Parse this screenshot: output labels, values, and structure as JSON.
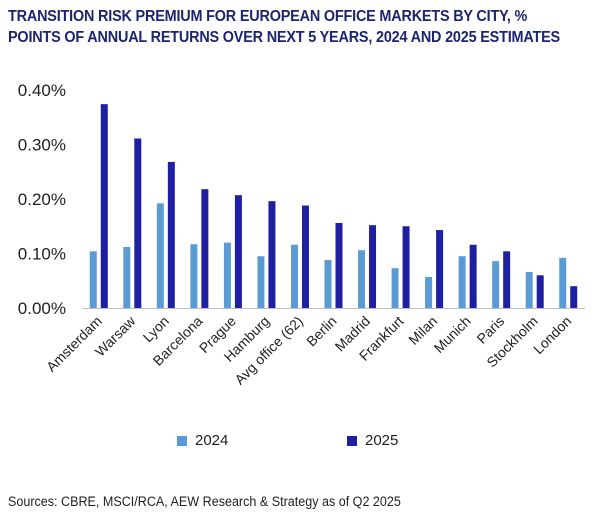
{
  "title": "TRANSITION RISK PREMIUM FOR EUROPEAN OFFICE MARKETS BY CITY, % POINTS OF ANNUAL RETURNS OVER NEXT 5 YEARS, 2024 AND 2025 ESTIMATES",
  "source": "Sources: CBRE, MSCI/RCA, AEW Research & Strategy as of Q2 2025",
  "colors": {
    "series_2024": "#5b9bd5",
    "series_2025": "#1f1fa3",
    "title": "#1d2470"
  },
  "chart_data": {
    "type": "bar",
    "title": "TRANSITION RISK PREMIUM FOR EUROPEAN OFFICE MARKETS BY CITY, % POINTS OF ANNUAL RETURNS OVER NEXT 5 YEARS, 2024 AND 2025 ESTIMATES",
    "xlabel": "",
    "ylabel": "",
    "categories": [
      "Amsterdam",
      "Warsaw",
      "Lyon",
      "Barcelona",
      "Prague",
      "Hamburg",
      "Avg office (62)",
      "Berlin",
      "Madrid",
      "Frankfurt",
      "Milan",
      "Munich",
      "Paris",
      "Stockholm",
      "London"
    ],
    "series": [
      {
        "name": "2024",
        "values": [
          0.104,
          0.112,
          0.192,
          0.117,
          0.12,
          0.095,
          0.116,
          0.088,
          0.106,
          0.073,
          0.057,
          0.095,
          0.086,
          0.066,
          0.092
        ]
      },
      {
        "name": "2025",
        "values": [
          0.374,
          0.311,
          0.268,
          0.218,
          0.207,
          0.196,
          0.188,
          0.156,
          0.152,
          0.15,
          0.143,
          0.116,
          0.104,
          0.06,
          0.04
        ]
      }
    ],
    "ylim": [
      0,
      0.4
    ],
    "yticks": [
      "0.00%",
      "0.10%",
      "0.20%",
      "0.30%",
      "0.40%"
    ],
    "ytick_values": [
      0,
      0.1,
      0.2,
      0.3,
      0.4
    ],
    "grid": false,
    "legend": "bottom"
  }
}
